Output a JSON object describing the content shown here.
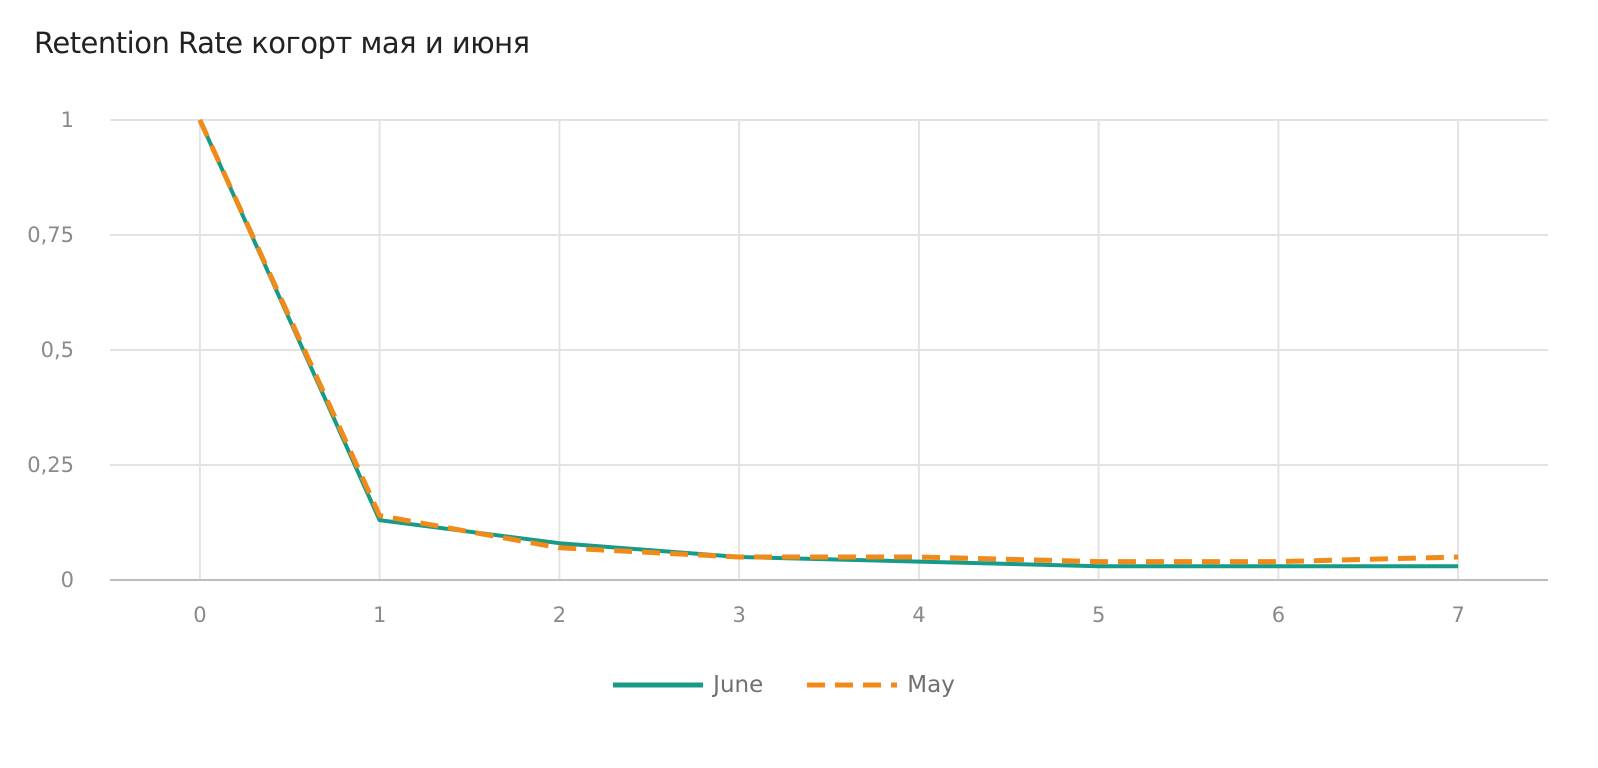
{
  "chart_data": {
    "type": "line",
    "title": "Retention Rate когорт мая и июня",
    "xlabel": "",
    "ylabel": "",
    "x": [
      0,
      1,
      2,
      3,
      4,
      5,
      6,
      7
    ],
    "x_tick_labels": [
      "0",
      "1",
      "2",
      "3",
      "4",
      "5",
      "6",
      "7"
    ],
    "y_ticks": [
      0,
      0.25,
      0.5,
      0.75,
      1
    ],
    "y_tick_labels": [
      "0",
      "0,25",
      "0,5",
      "0,75",
      "1"
    ],
    "ylim": [
      0,
      1
    ],
    "xlim": [
      -0.5,
      7.5
    ],
    "grid": true,
    "legend_position": "bottom-center",
    "series": [
      {
        "name": "June",
        "style": "solid",
        "color": "#179a87",
        "values": [
          1,
          0.13,
          0.08,
          0.05,
          0.04,
          0.03,
          0.03,
          0.03
        ]
      },
      {
        "name": "May",
        "style": "dashed",
        "color": "#f08a19",
        "values": [
          1,
          0.14,
          0.07,
          0.05,
          0.05,
          0.04,
          0.04,
          0.05
        ]
      }
    ]
  }
}
